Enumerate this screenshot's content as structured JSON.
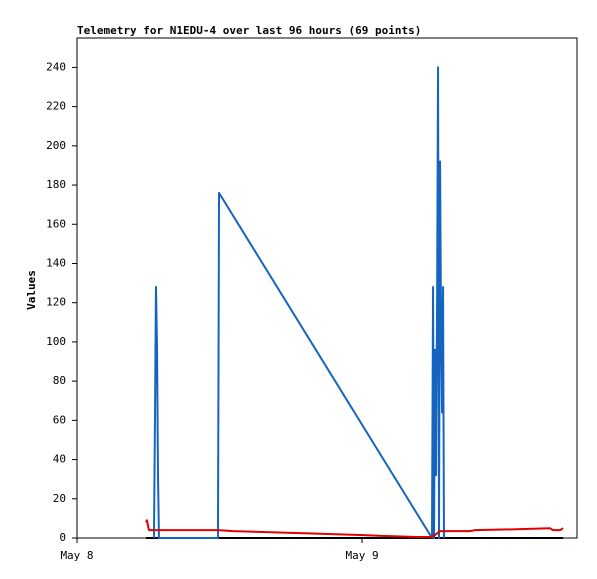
{
  "chart_data": {
    "type": "line",
    "title": "Telemetry for N1EDU-4 over last 96 hours (69 points)",
    "y_label": "Values",
    "xlim": [
      0,
      42.1
    ],
    "xticks": [
      {
        "value": 0,
        "label": "May 8"
      },
      {
        "value": 24,
        "label": "May 9"
      }
    ],
    "ylim": [
      0,
      255
    ],
    "yticks": [
      0,
      20,
      40,
      60,
      80,
      100,
      120,
      140,
      160,
      180,
      200,
      220,
      240
    ],
    "grid": false,
    "series": [
      {
        "color": "#000000",
        "x": [
          5.81,
          40.93
        ],
        "values": [
          0,
          0
        ]
      },
      {
        "color": "#1565c0",
        "x": [
          6.48,
          6.57,
          6.65,
          6.74,
          6.82,
          6.9,
          11.87,
          11.96,
          29.89,
          29.98,
          30.06,
          30.15,
          30.23,
          30.32,
          30.4,
          30.48,
          30.57,
          30.65,
          30.74,
          30.82,
          30.9
        ],
        "values": [
          0,
          64,
          128,
          96,
          32,
          0,
          0,
          176,
          0,
          128,
          0,
          96,
          32,
          120,
          240,
          0,
          192,
          112,
          64,
          128,
          0
        ]
      },
      {
        "color": "#e00000",
        "x": [
          5.81,
          5.89,
          6.06,
          11.87,
          13.14,
          18.78,
          23.83,
          25.94,
          28.72,
          29.89,
          30.57,
          33.09,
          33.52,
          37.31,
          39.83,
          40.08,
          40.67,
          40.93
        ],
        "values": [
          8,
          9,
          4,
          4,
          3.5,
          2.5,
          1.5,
          1,
          0.5,
          0.5,
          3.5,
          3.5,
          4,
          4.5,
          5,
          4,
          4,
          5
        ]
      }
    ]
  }
}
